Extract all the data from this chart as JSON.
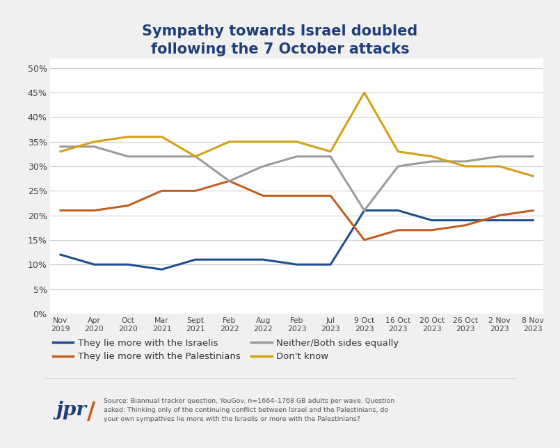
{
  "title": "Sympathy towards Israel doubled\nfollowing the 7 October attacks",
  "x_labels": [
    "Nov\n2019",
    "Apr\n2020",
    "Oct\n2020",
    "Mar\n2021",
    "Sept\n2021",
    "Feb\n2022",
    "Aug\n2022",
    "Feb\n2023",
    "Jul\n2023",
    "9 Oct\n2023",
    "16 Oct\n2023",
    "20 Oct\n2023",
    "26 Oct\n2023",
    "2 Nov\n2023",
    "8 Nov\n2023"
  ],
  "israelis": [
    12,
    10,
    10,
    9,
    11,
    11,
    11,
    10,
    10,
    21,
    21,
    19,
    19,
    19,
    19
  ],
  "palestinians": [
    21,
    21,
    22,
    25,
    25,
    27,
    24,
    24,
    24,
    15,
    17,
    17,
    18,
    20,
    21
  ],
  "neither": [
    34,
    34,
    32,
    32,
    32,
    27,
    30,
    32,
    32,
    21,
    30,
    31,
    31,
    32,
    32
  ],
  "dont_know": [
    33,
    35,
    36,
    36,
    32,
    35,
    35,
    35,
    33,
    45,
    33,
    32,
    30,
    30,
    28
  ],
  "colors": {
    "israelis": "#1f4e8c",
    "palestinians": "#c45e1e",
    "neither": "#9b9b9b",
    "dont_know": "#d4a017"
  },
  "ylim": [
    0,
    52
  ],
  "yticks": [
    0,
    5,
    10,
    15,
    20,
    25,
    30,
    35,
    40,
    45,
    50
  ],
  "legend_labels": {
    "israelis": "They lie more with the Israelis",
    "palestinians": "They lie more with the Palestinians",
    "neither": "Neither/Both sides equally",
    "dont_know": "Don't know"
  },
  "source_text": "Source: Biannual tracker question, YouGov. n=1664–1768 GB adults per wave. Question\nasked: Thinking only of the continuing conflict between Israel and the Palestinians, do\nyour own sympathies lie more with the Israelis or more with the Palestinians?",
  "jpr_text": "jpr",
  "background_color": "#f0f0f0",
  "plot_bg_color": "#ffffff",
  "title_color": "#1f3f7a",
  "grid_color": "#cccccc",
  "line_width": 2.2
}
